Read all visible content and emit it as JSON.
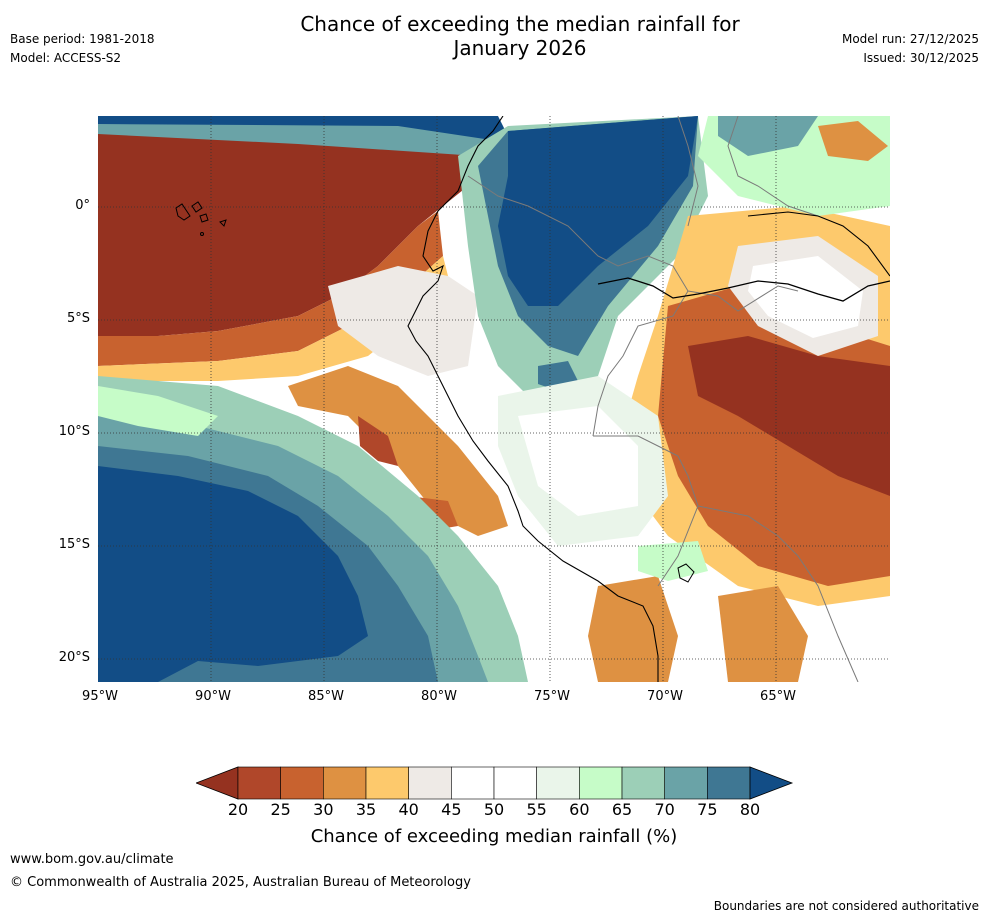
{
  "header": {
    "title_line1": "Chance of exceeding the median rainfall for",
    "title_line2": "January 2026",
    "base_period": "Base period: 1981-2018",
    "model": "Model: ACCESS-S2",
    "model_run": "Model run: 27/12/2025",
    "issued": "Issued: 30/12/2025"
  },
  "map": {
    "lat_labels": [
      "0°",
      "5°S",
      "10°S",
      "15°S",
      "20°S"
    ],
    "lon_labels": [
      "95°W",
      "90°W",
      "85°W",
      "80°W",
      "75°W",
      "70°W",
      "65°W"
    ],
    "extent": {
      "lon": [
        -95,
        -60
      ],
      "lat": [
        -21,
        4
      ]
    }
  },
  "colorbar": {
    "ticks": [
      "20",
      "25",
      "30",
      "35",
      "40",
      "45",
      "50",
      "55",
      "60",
      "65",
      "70",
      "75",
      "80"
    ],
    "colors": [
      "#b0472a",
      "#c8622f",
      "#de9142",
      "#fdc96c",
      "#eeeae6",
      "#ffffff",
      "#ffffff",
      "#eaf5ea",
      "#c6fcc8",
      "#9ccfb7",
      "#6aa3a7",
      "#3f7793"
    ],
    "under_color": "#953220",
    "over_color": "#124d86",
    "label": "Chance of exceeding median rainfall (%)"
  },
  "footer": {
    "website": "www.bom.gov.au/climate",
    "copyright": "© Commonwealth of Australia 2025, Australian Bureau of Meteorology",
    "disclaimer": "Boundaries are not considered authoritative"
  }
}
